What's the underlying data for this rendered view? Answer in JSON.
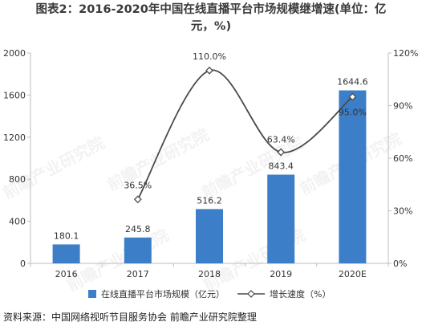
{
  "title_line1": "图表2：2016-2020年中国在线直播平台市场规模继增速(单位：亿",
  "title_line2": "元，%)",
  "source": "资料来源：中国网络视听节目服务协会 前瞻产业研究院整理",
  "watermark": "前瞻产业研究院",
  "chart_data": {
    "type": "bar+line",
    "categories": [
      "2016",
      "2017",
      "2018",
      "2019",
      "2020E"
    ],
    "series": [
      {
        "name": "在线直播平台市场规模（亿元）",
        "kind": "bar",
        "axis": "left",
        "color": "#3c7fc8",
        "values": [
          180.1,
          245.8,
          516.2,
          843.4,
          1644.6
        ],
        "labels": [
          "180.1",
          "245.8",
          "516.2",
          "843.4",
          "1644.6"
        ]
      },
      {
        "name": "增长速度（%）",
        "kind": "line",
        "axis": "right",
        "color": "#4a4a4a",
        "values": [
          null,
          36.5,
          110.0,
          63.4,
          95.0
        ],
        "labels": [
          "",
          "36.5%",
          "110.0%",
          "63.4%",
          "95.0%"
        ]
      }
    ],
    "y_left": {
      "min": 0,
      "max": 2000,
      "ticks": [
        "0",
        "400",
        "800",
        "1200",
        "1600",
        "2000"
      ],
      "tick_values": [
        0,
        400,
        800,
        1200,
        1600,
        2000
      ]
    },
    "y_right": {
      "min": 0,
      "max": 120,
      "ticks": [
        "0%",
        "30%",
        "60%",
        "90%",
        "120%"
      ],
      "tick_values": [
        0,
        30,
        60,
        90,
        120
      ]
    },
    "grid": false,
    "legend_position": "bottom"
  }
}
